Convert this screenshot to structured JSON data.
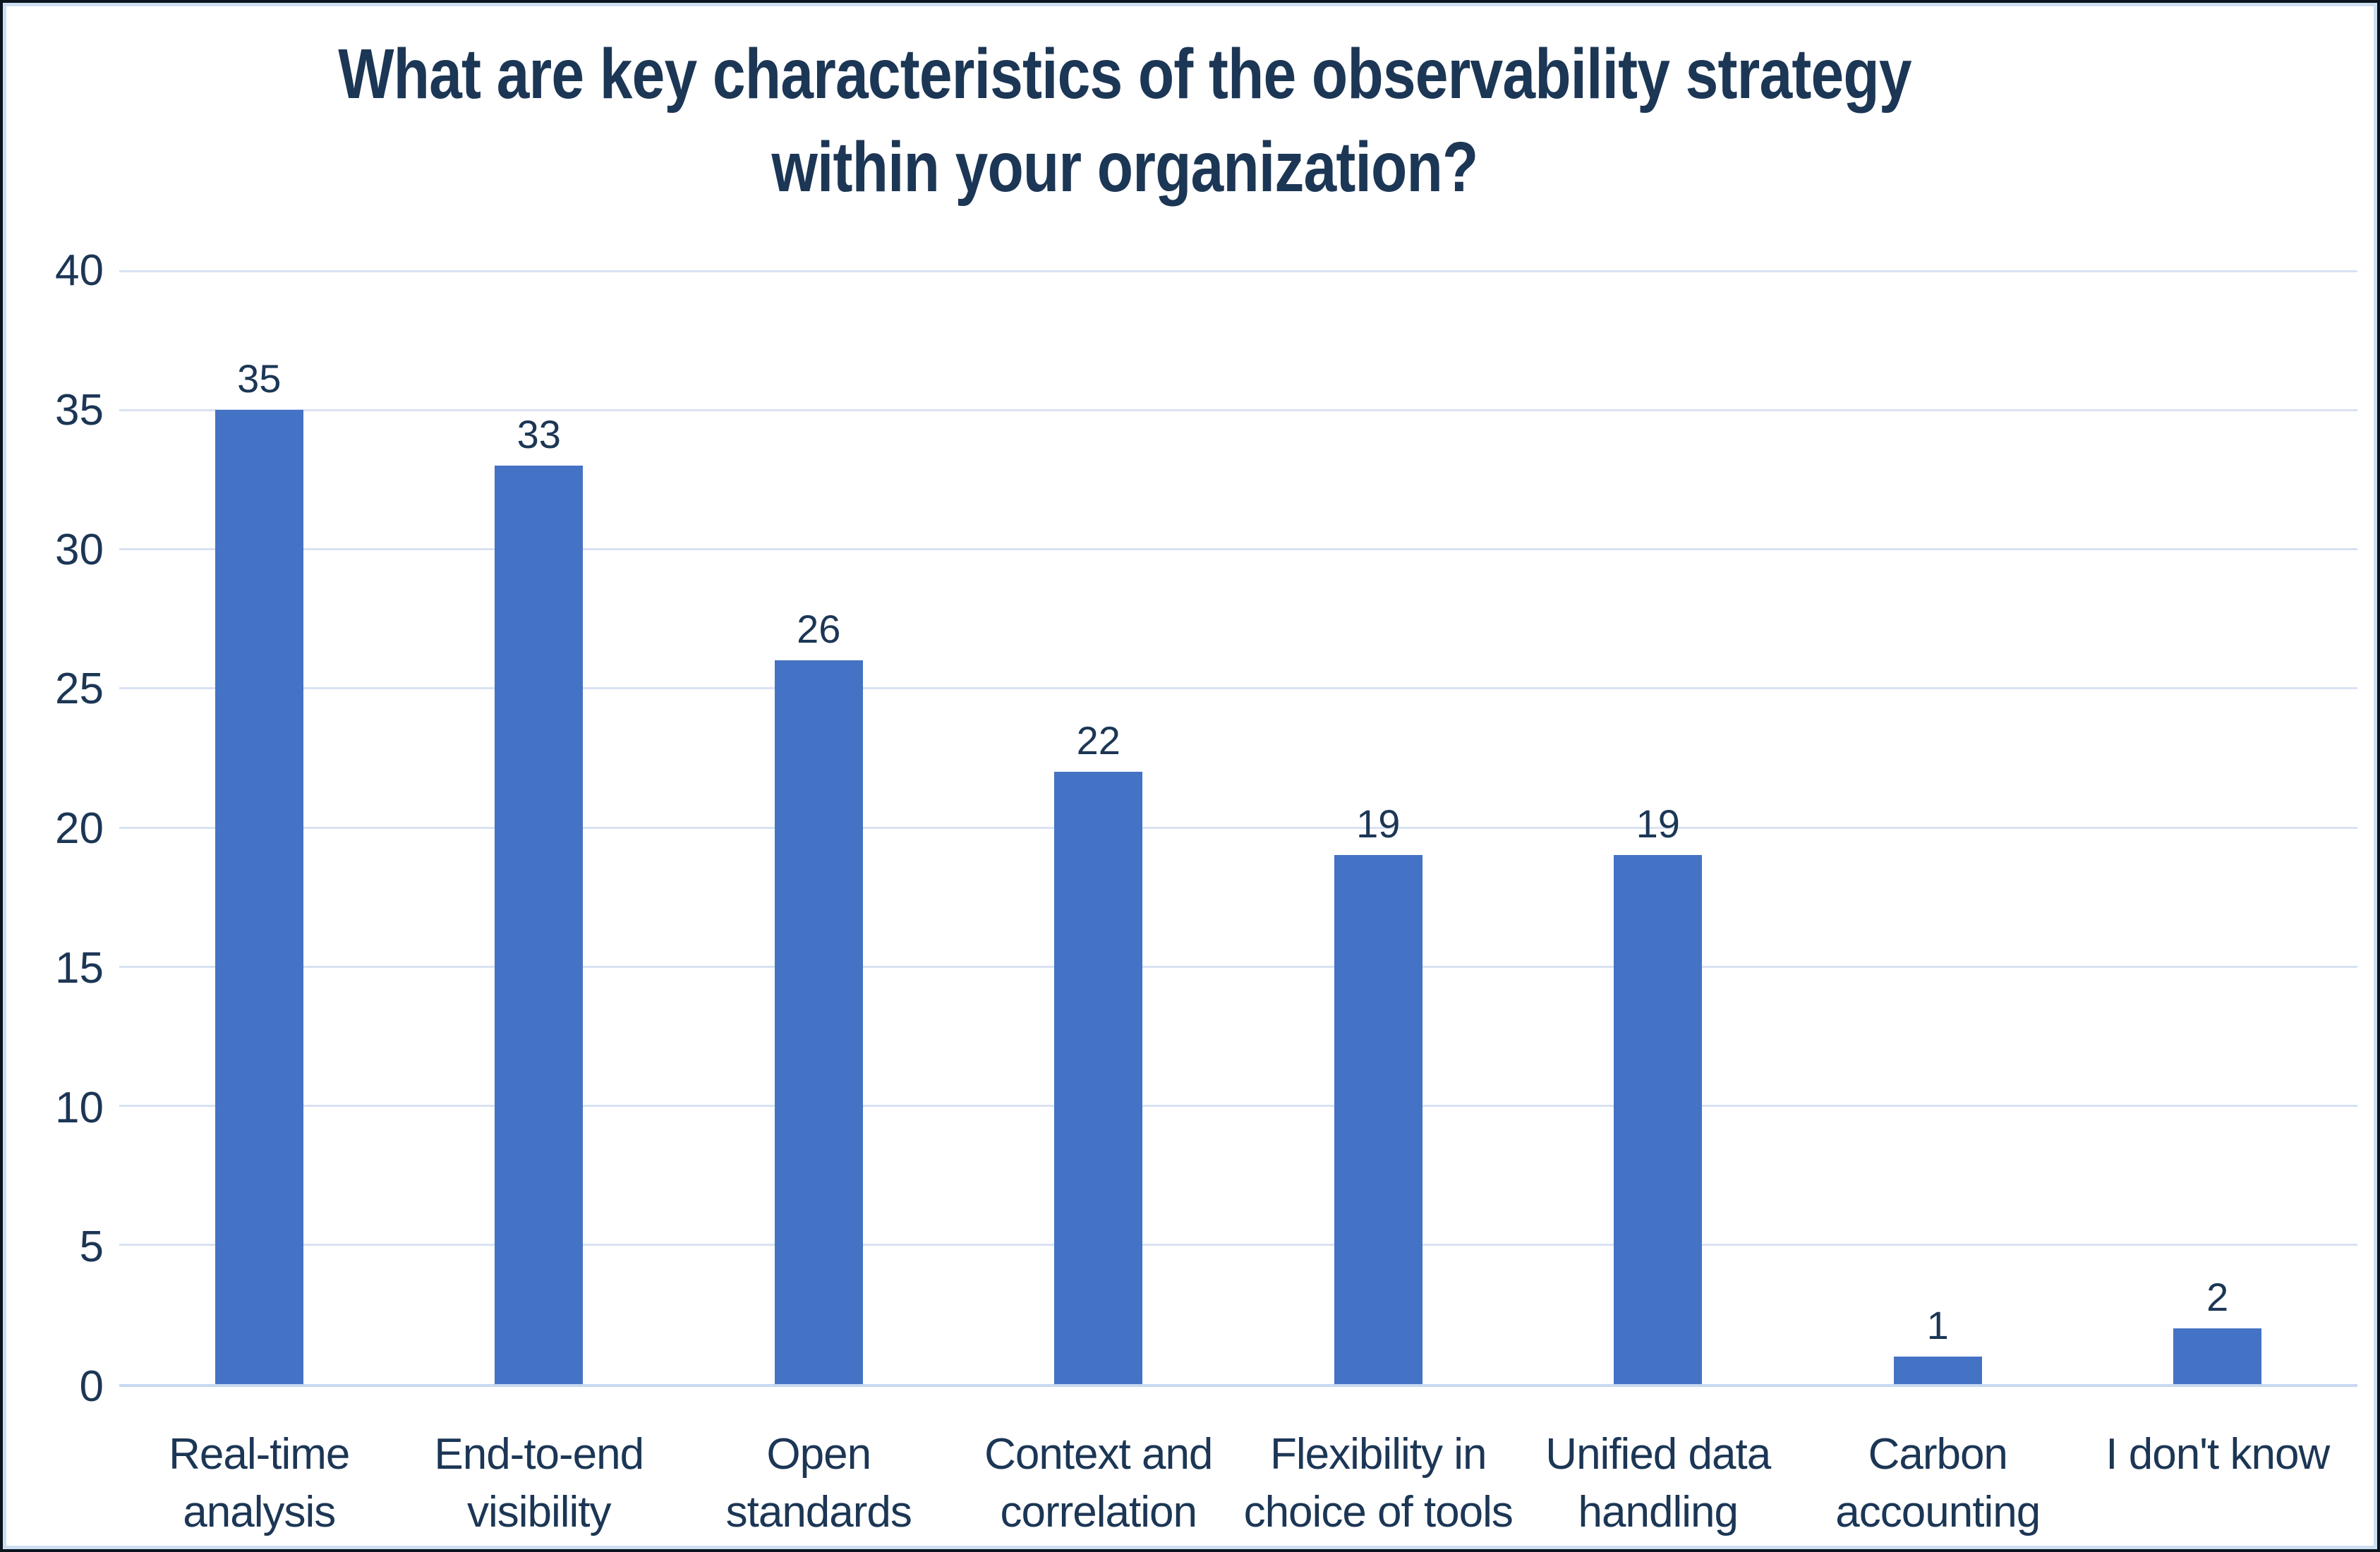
{
  "chart_data": {
    "type": "bar",
    "title": "What are key characteristics of the observability strategy within your organization?",
    "title_lines": [
      "What are key characteristics of the observability strategy",
      "within your organization?"
    ],
    "categories": [
      "Real-time\nanalysis",
      "End-to-end\nvisibility",
      "Open\nstandards",
      "Context and\ncorrelation",
      "Flexibility in\nchoice of tools",
      "Unified data\nhandling",
      "Carbon\naccounting",
      "I don't know"
    ],
    "values": [
      35,
      33,
      26,
      22,
      19,
      19,
      1,
      2
    ],
    "xlabel": "",
    "ylabel": "",
    "ylim": [
      0,
      40
    ],
    "yticks": [
      0,
      5,
      10,
      15,
      20,
      25,
      30,
      35,
      40
    ],
    "grid": true,
    "legend": false,
    "data_labels": true,
    "colors": {
      "bar": "#4472C4",
      "text": "#1C3655",
      "grid": "#D9E2F3",
      "axis_line": "#C7D9F0",
      "inner_border": "#CDDEF1",
      "outer_border": "#0C141F",
      "background": "#FFFFFF"
    }
  }
}
